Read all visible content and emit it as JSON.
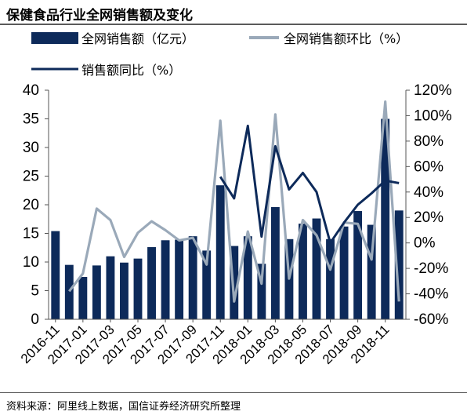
{
  "title": "保健食品行业全网销售额及变化",
  "source": "资料来源：阿里线上数据，国信证券经济研究所整理",
  "colors": {
    "bar": "#0d2a5a",
    "mom": "#9aa9b9",
    "yoy": "#0d2a5a"
  },
  "chart_data": {
    "type": "bar",
    "title": "保健食品行业全网销售额及变化",
    "categories": [
      "2016-11",
      "2016-12",
      "2017-01",
      "2017-02",
      "2017-03",
      "2017-04",
      "2017-05",
      "2017-06",
      "2017-07",
      "2017-08",
      "2017-09",
      "2017-10",
      "2017-11",
      "2017-12",
      "2018-01",
      "2018-02",
      "2018-03",
      "2018-04",
      "2018-05",
      "2018-06",
      "2018-07",
      "2018-08",
      "2018-09",
      "2018-10",
      "2018-11",
      "2018-12"
    ],
    "x_tick_labels": [
      "2016-11",
      "2017-01",
      "2017-03",
      "2017-05",
      "2017-07",
      "2017-09",
      "2017-11",
      "2018-01",
      "2018-03",
      "2018-05",
      "2018-07",
      "2018-09",
      "2018-11"
    ],
    "series": [
      {
        "name": "全网销售额（亿元）",
        "type": "bar",
        "axis": "left",
        "values": [
          15.4,
          9.5,
          7.4,
          9.4,
          11.0,
          9.9,
          10.6,
          12.6,
          13.8,
          13.9,
          14.5,
          12.0,
          23.4,
          12.8,
          14.5,
          9.7,
          19.6,
          14.0,
          16.7,
          17.6,
          14.0,
          16.2,
          18.9,
          16.5,
          35.0,
          19.0
        ]
      },
      {
        "name": "全网销售额环比（%）",
        "type": "line",
        "axis": "right",
        "values": [
          null,
          -38,
          -24,
          27,
          18,
          -11,
          8,
          17,
          10,
          2,
          4,
          -17,
          96,
          -46,
          9,
          -32,
          101,
          -28,
          18,
          6,
          -21,
          16,
          15,
          -13,
          111,
          -46
        ]
      },
      {
        "name": "销售额同比（%）",
        "type": "line",
        "axis": "right",
        "values": [
          null,
          null,
          null,
          null,
          null,
          null,
          null,
          null,
          null,
          null,
          null,
          null,
          52,
          35,
          92,
          5,
          76,
          42,
          55,
          40,
          0,
          16,
          30,
          39,
          49,
          47
        ]
      }
    ],
    "y_left": {
      "min": 0,
      "max": 40,
      "ticks": [
        "0",
        "5",
        "10",
        "15",
        "20",
        "25",
        "30",
        "35",
        "40"
      ]
    },
    "y_right": {
      "min": -60,
      "max": 120,
      "ticks": [
        "-60%",
        "-40%",
        "-20%",
        "0%",
        "20%",
        "40%",
        "60%",
        "80%",
        "100%",
        "120%"
      ]
    },
    "grid": false,
    "legend_position": "top"
  }
}
